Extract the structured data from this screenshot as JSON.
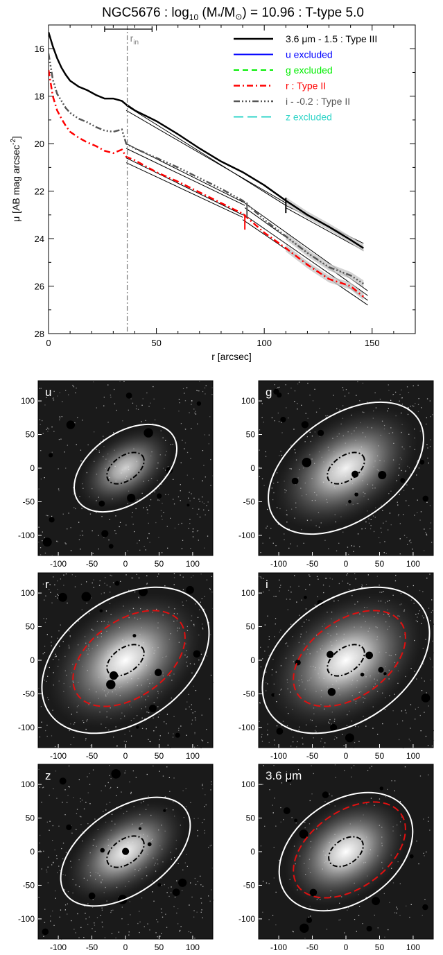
{
  "chart_data": [
    {
      "type": "line",
      "title": "NGC5676 : log10 (M*/M⊙) = 10.96 : T-type 5.0",
      "title_parts": {
        "name": "NGC5676 : log",
        "sub10": "10",
        "mid": " (M",
        "star": "*",
        "slash": "/M",
        "sun": "⊙",
        "rest": ") = 10.96 : T-type 5.0"
      },
      "xlabel": "r [arcsec]",
      "ylabel": {
        "pre": "μ [AB mag arcsec",
        "sup": "-2",
        "post": "]"
      },
      "xlim": [
        0,
        170
      ],
      "ylim": [
        28,
        15
      ],
      "y_inverted": true,
      "xticks": [
        0,
        50,
        100,
        150
      ],
      "yticks": [
        16,
        18,
        20,
        22,
        24,
        26,
        28
      ],
      "rin": {
        "label": "r",
        "sub": "in",
        "value": 36.5,
        "err": [
          26,
          48
        ],
        "color": "#808080"
      },
      "legend_position": "top-right",
      "series": [
        {
          "name": "3.6 μm - 1.5 : Type III",
          "color": "#000000",
          "dash": "",
          "width": 2.5,
          "x": [
            0,
            2,
            4,
            6,
            8,
            10,
            14,
            18,
            22,
            26,
            30,
            34,
            36,
            40,
            50,
            60,
            70,
            80,
            90,
            100,
            110,
            120,
            130,
            140,
            146
          ],
          "y": [
            15.3,
            15.9,
            16.4,
            16.8,
            17.1,
            17.35,
            17.6,
            17.75,
            17.95,
            18.1,
            18.1,
            18.2,
            18.35,
            18.6,
            19.05,
            19.6,
            20.2,
            20.75,
            21.2,
            21.75,
            22.4,
            23.0,
            23.5,
            24.05,
            24.4
          ],
          "fits": [
            {
              "x": [
                36,
                110
              ],
              "y": [
                18.4,
                22.6
              ]
            },
            {
              "x": [
                36,
                110
              ],
              "y": [
                18.6,
                22.5
              ]
            },
            {
              "x": [
                110,
                146
              ],
              "y": [
                22.6,
                24.2
              ]
            },
            {
              "x": [
                110,
                146
              ],
              "y": [
                22.7,
                24.5
              ]
            }
          ],
          "break_x": 110,
          "break_y": 22.6
        },
        {
          "name": "u excluded",
          "color": "#0000ff",
          "dash": "",
          "width": 2,
          "x": [],
          "y": []
        },
        {
          "name": "g excluded",
          "color": "#00ee00",
          "dash": "8,5",
          "width": 2,
          "x": [],
          "y": []
        },
        {
          "name": "r : Type II",
          "color": "#ff0000",
          "dash": "9,4,2,4",
          "width": 2.5,
          "x": [
            0,
            2,
            4,
            6,
            8,
            10,
            14,
            18,
            22,
            26,
            30,
            34,
            36,
            40,
            50,
            60,
            70,
            80,
            90,
            100,
            110,
            120,
            130,
            140,
            146
          ],
          "y": [
            16.9,
            18.0,
            18.6,
            18.95,
            19.25,
            19.5,
            19.75,
            19.95,
            20.1,
            20.3,
            20.4,
            20.25,
            20.55,
            20.7,
            21.2,
            21.6,
            22.05,
            22.5,
            22.95,
            23.75,
            24.4,
            25.1,
            25.7,
            26.0,
            26.45
          ],
          "fits": [
            {
              "x": [
                36,
                90
              ],
              "y": [
                20.6,
                23.0
              ]
            },
            {
              "x": [
                36,
                90
              ],
              "y": [
                20.8,
                23.1
              ]
            },
            {
              "x": [
                90,
                148
              ],
              "y": [
                22.95,
                26.6
              ]
            },
            {
              "x": [
                90,
                148
              ],
              "y": [
                23.2,
                26.8
              ]
            }
          ],
          "break_x": 91,
          "break_y": 23.3
        },
        {
          "name": "i - -0.2 : Type II",
          "color": "#555555",
          "dash": "9,3,2,3,2,3,2,3",
          "width": 2.5,
          "x": [
            0,
            2,
            4,
            6,
            8,
            10,
            14,
            18,
            22,
            26,
            30,
            34,
            36,
            40,
            50,
            60,
            70,
            80,
            90,
            100,
            110,
            120,
            130,
            140,
            146
          ],
          "y": [
            16.2,
            17.3,
            17.9,
            18.2,
            18.5,
            18.7,
            18.95,
            19.1,
            19.3,
            19.45,
            19.5,
            19.4,
            20.0,
            20.2,
            20.6,
            21.0,
            21.45,
            21.9,
            22.4,
            23.2,
            23.9,
            24.6,
            25.2,
            25.55,
            25.9
          ],
          "fits": [
            {
              "x": [
                36,
                91
              ],
              "y": [
                20.0,
                22.5
              ]
            },
            {
              "x": [
                36,
                91
              ],
              "y": [
                20.2,
                22.6
              ]
            },
            {
              "x": [
                91,
                148
              ],
              "y": [
                22.5,
                26.2
              ]
            },
            {
              "x": [
                91,
                148
              ],
              "y": [
                22.7,
                26.4
              ]
            }
          ],
          "break_x": 92,
          "break_y": 22.8
        },
        {
          "name": "z excluded",
          "color": "#30d5c8",
          "dash": "14,6",
          "width": 2,
          "x": [],
          "y": []
        }
      ]
    },
    {
      "type": "image",
      "panels": [
        {
          "label": "u",
          "white": [
            0,
            0,
            0,
            0
          ],
          "red": null,
          "black": [
            0,
            0,
            0,
            0
          ],
          "noise": 0.38,
          "glow": 0.8
        },
        {
          "label": "g",
          "white": [
            0,
            0,
            0,
            0
          ],
          "red": null,
          "black": [
            0,
            0,
            0,
            0
          ],
          "noise": 0.42,
          "glow": 0.95
        },
        {
          "label": "r",
          "white": [
            0,
            0,
            0,
            0
          ],
          "red": [
            0,
            0,
            0,
            0
          ],
          "black": [
            0,
            0,
            0,
            0
          ],
          "noise": 0.48,
          "glow": 1.0
        },
        {
          "label": "i",
          "white": [
            0,
            0,
            0,
            0
          ],
          "red": [
            0,
            0,
            0,
            0
          ],
          "black": [
            0,
            0,
            0,
            0
          ],
          "noise": 0.48,
          "glow": 1.0
        },
        {
          "label": "z",
          "white": [
            0,
            0,
            0,
            0
          ],
          "red": null,
          "black": [
            0,
            0,
            0,
            0
          ],
          "noise": 0.4,
          "glow": 0.95
        },
        {
          "label": "3.6 μm",
          "white": [
            0,
            0,
            0,
            0
          ],
          "red": [
            0,
            0,
            0,
            0
          ],
          "black": [
            0,
            0,
            0,
            0
          ],
          "noise": 0.2,
          "glow": 1.0
        }
      ],
      "axis_ticks": [
        -100,
        -50,
        0,
        50,
        100
      ],
      "axis_range": [
        -130,
        130
      ],
      "colors": {
        "ellipse_outer": "#ffffff",
        "ellipse_break": "#e01010",
        "ellipse_inner": "#000000"
      }
    }
  ]
}
